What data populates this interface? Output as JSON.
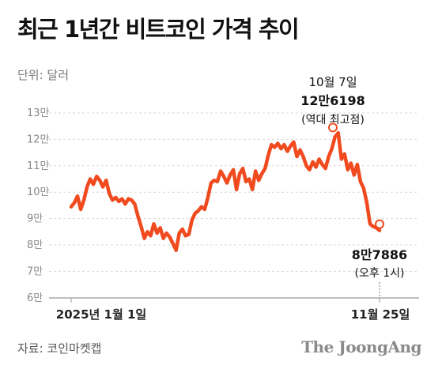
{
  "title": "최근 1년간 비트코인 가격 추이",
  "unit_label": "단위: 달러",
  "source": "자료: 코인마켓캡",
  "brand": "The JoongAng",
  "colors": {
    "line": "#f04a1e",
    "grid": "#d9d9d9",
    "axis": "#999999",
    "marker_fill": "#ffffff"
  },
  "chart_data": {
    "type": "line",
    "title": "최근 1년간 비트코인 가격 추이",
    "ylabel": "단위: 달러",
    "ylim": [
      60000,
      130000
    ],
    "y_ticks": [
      {
        "value": 130000,
        "label": "13만"
      },
      {
        "value": 120000,
        "label": "12만"
      },
      {
        "value": 110000,
        "label": "11만"
      },
      {
        "value": 100000,
        "label": "10만"
      },
      {
        "value": 90000,
        "label": "9만"
      },
      {
        "value": 80000,
        "label": "8만"
      },
      {
        "value": 70000,
        "label": "7만"
      },
      {
        "value": 60000,
        "label": "6만"
      }
    ],
    "x_ticks": [
      "2025년 1월 1일",
      "11월 25일"
    ],
    "grid": true,
    "series": [
      {
        "values": [
          94500,
          96000,
          98500,
          93500,
          97000,
          102000,
          105000,
          103000,
          106000,
          104500,
          102000,
          104500,
          99500,
          97000,
          98000,
          96500,
          97500,
          95500,
          97500,
          97000,
          95500,
          91000,
          87000,
          82500,
          85000,
          83500,
          88000,
          84500,
          86500,
          82500,
          84500,
          83000,
          80500,
          78000,
          84500,
          86000,
          83500,
          84000,
          89500,
          92000,
          93000,
          94500,
          93500,
          98000,
          103500,
          104500,
          104000,
          108000,
          106000,
          103500,
          106500,
          108500,
          101000,
          107000,
          109000,
          104000,
          105000,
          101000,
          108000,
          104500,
          107000,
          109000,
          114000,
          118000,
          117000,
          118500,
          116500,
          118000,
          115500,
          117500,
          119000,
          113500,
          116000,
          113500,
          110000,
          108500,
          111500,
          109500,
          112500,
          110500,
          109000,
          113500,
          116500,
          121000,
          122500,
          112500,
          114500,
          108500,
          111000,
          106500,
          110500,
          104000,
          101500,
          96000,
          88000,
          87000,
          86500,
          85500
        ]
      }
    ],
    "annotations": [
      {
        "date": "10월 7일",
        "value_label": "12만6198",
        "note": "(역대 최고점)",
        "value": 124500
      },
      {
        "value_label": "8만7886",
        "note": "(오후 1시)",
        "value": 87886
      }
    ]
  }
}
